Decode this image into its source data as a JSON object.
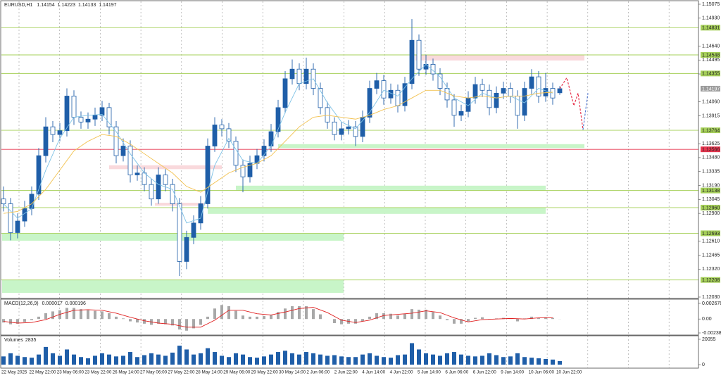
{
  "chart_data": [
    {
      "type": "candlestick",
      "symbol": "EURUSD,H1",
      "color": "#1f5ea8",
      "open": [
        1.1305,
        1.13,
        1.127,
        1.1282,
        1.1295,
        1.131,
        1.135,
        1.138,
        1.1372,
        1.1376,
        1.1412,
        1.139,
        1.1385,
        1.1388,
        1.1392,
        1.14,
        1.138,
        1.135,
        1.136,
        1.133,
        1.1332,
        1.132,
        1.1305,
        1.133,
        1.132,
        1.13,
        1.124,
        1.1265,
        1.128,
        1.13,
        1.136,
        1.1382,
        1.1378,
        1.1365,
        1.134,
        1.1328,
        1.1342,
        1.135,
        1.136,
        1.1375,
        1.14,
        1.143,
        1.144,
        1.1425,
        1.144,
        1.142,
        1.14,
        1.1385,
        1.1372,
        1.1378,
        1.138,
        1.137,
        1.139,
        1.142,
        1.1428,
        1.141,
        1.1418,
        1.1402,
        1.1425,
        1.147,
        1.144,
        1.1445,
        1.1435,
        1.142,
        1.1408,
        1.1392,
        1.1396,
        1.141,
        1.1424,
        1.1418,
        1.14,
        1.1415,
        1.142,
        1.1412,
        1.1392,
        1.142,
        1.1432,
        1.1412,
        1.142,
        1.14154
      ],
      "high": [
        1.1318,
        1.1306,
        1.129,
        1.1303,
        1.1318,
        1.1358,
        1.139,
        1.1386,
        1.1384,
        1.142,
        1.1418,
        1.1396,
        1.1395,
        1.14,
        1.1407,
        1.1405,
        1.1386,
        1.1368,
        1.1366,
        1.134,
        1.1338,
        1.1326,
        1.1338,
        1.1336,
        1.1326,
        1.1306,
        1.1272,
        1.1288,
        1.1308,
        1.1368,
        1.139,
        1.1388,
        1.1384,
        1.137,
        1.1346,
        1.135,
        1.1357,
        1.1367,
        1.1383,
        1.1408,
        1.1438,
        1.145,
        1.1446,
        1.1452,
        1.1446,
        1.1426,
        1.1406,
        1.139,
        1.1385,
        1.1387,
        1.1386,
        1.1397,
        1.1428,
        1.1436,
        1.1434,
        1.1425,
        1.1424,
        1.1432,
        1.1492,
        1.1476,
        1.1455,
        1.1451,
        1.1441,
        1.1426,
        1.1414,
        1.1403,
        1.1417,
        1.1432,
        1.143,
        1.1424,
        1.1422,
        1.1427,
        1.1426,
        1.1418,
        1.1427,
        1.144,
        1.1438,
        1.1436,
        1.1426,
        1.14223
      ],
      "low": [
        1.1292,
        1.1262,
        1.1264,
        1.1276,
        1.1288,
        1.1304,
        1.1343,
        1.1364,
        1.1365,
        1.137,
        1.1382,
        1.1378,
        1.1378,
        1.1381,
        1.1386,
        1.1372,
        1.1342,
        1.1344,
        1.1322,
        1.1324,
        1.1313,
        1.1298,
        1.13,
        1.1313,
        1.1292,
        1.1225,
        1.1232,
        1.1258,
        1.1273,
        1.1295,
        1.1354,
        1.137,
        1.1358,
        1.1333,
        1.1312,
        1.1322,
        1.1336,
        1.1344,
        1.1354,
        1.1369,
        1.1394,
        1.1424,
        1.1418,
        1.1419,
        1.1413,
        1.1393,
        1.1378,
        1.1366,
        1.1366,
        1.1372,
        1.136,
        1.1364,
        1.1384,
        1.1414,
        1.1403,
        1.1404,
        1.1395,
        1.1396,
        1.1419,
        1.1433,
        1.1434,
        1.1428,
        1.1413,
        1.14,
        1.138,
        1.1386,
        1.139,
        1.1404,
        1.1411,
        1.1392,
        1.1394,
        1.1409,
        1.1405,
        1.1378,
        1.1386,
        1.1414,
        1.1405,
        1.1406,
        1.1403,
        1.14133
      ],
      "close": [
        1.13,
        1.127,
        1.1282,
        1.1295,
        1.131,
        1.135,
        1.138,
        1.1372,
        1.1376,
        1.1412,
        1.139,
        1.1385,
        1.1388,
        1.1392,
        1.14,
        1.138,
        1.135,
        1.136,
        1.133,
        1.1332,
        1.132,
        1.1305,
        1.133,
        1.132,
        1.13,
        1.124,
        1.1265,
        1.128,
        1.13,
        1.136,
        1.1382,
        1.1378,
        1.1365,
        1.134,
        1.1328,
        1.1342,
        1.135,
        1.136,
        1.1375,
        1.14,
        1.143,
        1.144,
        1.1425,
        1.144,
        1.142,
        1.14,
        1.1385,
        1.1372,
        1.1378,
        1.138,
        1.137,
        1.139,
        1.142,
        1.1428,
        1.141,
        1.1418,
        1.1402,
        1.1425,
        1.147,
        1.144,
        1.1445,
        1.1435,
        1.142,
        1.1408,
        1.1392,
        1.1396,
        1.141,
        1.1424,
        1.1418,
        1.14,
        1.1415,
        1.142,
        1.1412,
        1.1392,
        1.142,
        1.1432,
        1.1412,
        1.142,
        1.141,
        1.14197
      ],
      "ylim": [
        1.1203,
        1.15075
      ],
      "yticks": [
        1.15075,
        {
          "value": 1.1493,
          "label": "1.14930"
        },
        {
          "value": 1.1464,
          "label": "1.14640"
        },
        1.14495,
        {
          "value": 1.1435,
          "label": "1.14350"
        },
        {
          "value": 1.1406,
          "label": "1.14060"
        },
        1.13915,
        1.13625,
        {
          "value": 1.1348,
          "label": "1.13480"
        },
        1.13335,
        {
          "value": 1.1319,
          "label": "1.13190"
        },
        1.13045,
        {
          "value": 1.129,
          "label": "1.12900"
        },
        {
          "value": 1.1261,
          "label": "1.12610"
        },
        1.12465,
        {
          "value": 1.1232,
          "label": "1.12320"
        },
        {
          "value": 1.1203,
          "label": "1.12030"
        }
      ],
      "series": [
        {
          "color": "#7ec2e6",
          "x": [
            0,
            2,
            4,
            6,
            8,
            10,
            12,
            14,
            16,
            18,
            20,
            22,
            24,
            26,
            28,
            30,
            32,
            34,
            36,
            38,
            40,
            42,
            44,
            46,
            48,
            50,
            52,
            54,
            56,
            58,
            60,
            62,
            64,
            66,
            68,
            70,
            72,
            74,
            76,
            78
          ],
          "values": [
            1.13,
            1.1285,
            1.1295,
            1.1335,
            1.1368,
            1.139,
            1.1392,
            1.1393,
            1.1375,
            1.1352,
            1.1332,
            1.132,
            1.1315,
            1.128,
            1.1285,
            1.134,
            1.1368,
            1.1345,
            1.1342,
            1.136,
            1.1395,
            1.1425,
            1.143,
            1.1405,
            1.1385,
            1.1378,
            1.1395,
            1.1418,
            1.1412,
            1.143,
            1.1445,
            1.1432,
            1.141,
            1.1402,
            1.1415,
            1.141,
            1.1412,
            1.1405,
            1.142,
            1.1415
          ]
        },
        {
          "color": "#f2c14e",
          "x": [
            0,
            2,
            4,
            6,
            8,
            10,
            12,
            14,
            16,
            18,
            20,
            22,
            24,
            26,
            28,
            30,
            32,
            34,
            36,
            38,
            40,
            42,
            44,
            46,
            48,
            50,
            52,
            54,
            56,
            58,
            60,
            62,
            64,
            66,
            68,
            70,
            72,
            74,
            76,
            78
          ],
          "values": [
            1.129,
            1.1292,
            1.13,
            1.1315,
            1.1335,
            1.1355,
            1.1365,
            1.1372,
            1.137,
            1.1362,
            1.1352,
            1.1342,
            1.1332,
            1.1318,
            1.1312,
            1.1322,
            1.1332,
            1.1338,
            1.1342,
            1.135,
            1.1365,
            1.138,
            1.139,
            1.1392,
            1.139,
            1.1388,
            1.1392,
            1.1398,
            1.1402,
            1.141,
            1.1418,
            1.1418,
            1.1412,
            1.141,
            1.1412,
            1.141,
            1.1412,
            1.1412,
            1.1415,
            1.1416
          ]
        },
        {
          "color": "#e8364f",
          "dash": true,
          "x": [
            79,
            80,
            81,
            81.6,
            82.3
          ],
          "values": [
            1.14197,
            1.1431,
            1.1402,
            1.1415,
            1.1377
          ]
        },
        {
          "color": "#5b7fd6",
          "dash": true,
          "x": [
            82.3,
            83
          ],
          "values": [
            1.1377,
            1.1415
          ]
        }
      ],
      "zones": [
        {
          "x": [
            58.5,
            82.5
          ],
          "y": [
            1.1449,
            1.14548
          ],
          "color": "#f9d9dc"
        },
        {
          "x": [
            39,
            82.5
          ],
          "y": [
            1.1358,
            1.1362
          ],
          "color": "#c8f5c8"
        },
        {
          "x": [
            15,
            31
          ],
          "y": [
            1.1336,
            1.134
          ],
          "color": "#f9d9dc"
        },
        {
          "x": [
            33,
            77
          ],
          "y": [
            1.13138,
            1.13188
          ],
          "color": "#c8f5c8"
        },
        {
          "x": [
            21.5,
            28.5
          ],
          "y": [
            1.1298,
            1.1301
          ],
          "color": "#f9d9dc"
        },
        {
          "x": [
            29,
            77
          ],
          "y": [
            1.12895,
            1.1296
          ],
          "color": "#c8f5c8"
        },
        {
          "x": [
            -0.2,
            48.3
          ],
          "y": [
            1.12616,
            1.12689
          ],
          "color": "#c8f5c8"
        },
        {
          "x": [
            -0.2,
            48.3
          ],
          "y": [
            1.12074,
            1.12206
          ],
          "color": "#c8f5c8"
        }
      ],
      "levels": [
        {
          "value": 1.14831,
          "color": "#a6d05a"
        },
        {
          "value": 1.14548,
          "color": "#a6d05a"
        },
        {
          "value": 1.14355,
          "color": "#a6d05a"
        },
        {
          "value": 1.13764,
          "color": "#a6d05a"
        },
        {
          "value": 1.13566,
          "color": "#e8364f"
        },
        {
          "value": 1.13138,
          "color": "#a6d05a"
        },
        {
          "value": 1.1296,
          "label": "1.12960",
          "color": "#a6d05a"
        },
        {
          "value": 1.12693,
          "color": "#a6d05a"
        },
        {
          "value": 1.12208,
          "color": "#a6d05a"
        }
      ],
      "current_price": {
        "value": 1.14197,
        "color": "#9a9a9a"
      },
      "categories": [
        "22 May 2025",
        "22 May 22:00",
        "23 May 06:00",
        "23 May 22:00",
        "26 May 14:00",
        "27 May 06:00",
        "27 May 22:00",
        "28 May 14:00",
        "29 May 06:00",
        "29 May 22:00",
        "30 May 14:00",
        "2 Jun 06:00",
        "2 Jun 22:00",
        "4 Jun 14:00",
        "4 Jun 22:00",
        "5 Jun 14:00",
        "6 Jun 06:00",
        "6 Jun 22:00",
        "9 Jun 14:00",
        "10 Jun 06:00",
        "10 Jun 22:00"
      ]
    },
    {
      "type": "macd",
      "name": "MACD(12,26,9)",
      "color": "#a8a8a8",
      "values": [
        -0.0006,
        -0.0009,
        -0.0008,
        -0.0005,
        -0.0002,
        0.0004,
        0.001,
        0.0013,
        0.0015,
        0.0019,
        0.0019,
        0.0017,
        0.0015,
        0.0014,
        0.0013,
        0.001,
        0.0004,
        0.0001,
        -0.0004,
        -0.0006,
        -0.0008,
        -0.001,
        -0.0008,
        -0.0009,
        -0.0011,
        -0.0018,
        -0.002,
        -0.0016,
        -0.001,
        0.0004,
        0.0018,
        0.0024,
        0.0022,
        0.0014,
        0.0006,
        0.0004,
        0.0004,
        0.0005,
        0.0007,
        0.0012,
        0.0018,
        0.0022,
        0.0022,
        0.0022,
        0.0017,
        0.0008,
        0,
        -0.0007,
        -0.0009,
        -0.0008,
        -0.0008,
        -0.0004,
        0.0004,
        0.001,
        0.001,
        0.0009,
        0.0006,
        0.0009,
        0.0017,
        0.0016,
        0.0016,
        0.0012,
        0.0006,
        -0.0002,
        -0.0008,
        -0.0008,
        -0.0004,
        0.0002,
        0.0003,
        -0.0001,
        0.0001,
        0.0002,
        0.0001,
        -0.0004,
        0.0001,
        0.0004,
        0.0002,
        0.0003,
        0.0002,
        1.7e-05
      ],
      "signal": {
        "color": "#e02020",
        "x": [
          0,
          2,
          4,
          6,
          8,
          10,
          12,
          14,
          16,
          18,
          20,
          22,
          24,
          26,
          28,
          30,
          32,
          34,
          36,
          38,
          40,
          42,
          44,
          46,
          48,
          50,
          52,
          54,
          56,
          58,
          60,
          62,
          64,
          66,
          68,
          70,
          72,
          74,
          76,
          78
        ],
        "values": [
          -0.0004,
          -0.0007,
          -0.0006,
          -0.0001,
          0.0008,
          0.0015,
          0.0016,
          0.0015,
          0.001,
          0.0003,
          -0.0003,
          -0.0007,
          -0.0009,
          -0.0014,
          -0.0014,
          -0.0002,
          0.0015,
          0.0015,
          0.0009,
          0.0007,
          0.0012,
          0.0018,
          0.002,
          0.0011,
          -0.0002,
          -0.0006,
          -0.0002,
          0.0006,
          0.0008,
          0.001,
          0.0014,
          0.0011,
          0.0002,
          -0.0005,
          -0.0001,
          0,
          0.0001,
          0,
          0.0002,
          0.000196
        ]
      },
      "ylim": [
        -0.002389,
        0.002678
      ],
      "yticks": [
        0.002678,
        {
          "value": 0,
          "label": "0.00"
        },
        -0.002389
      ]
    },
    {
      "type": "bar",
      "name": "Volumes",
      "color": "#1f5ea8",
      "values": [
        6500,
        9000,
        7000,
        6000,
        5500,
        8000,
        14000,
        9000,
        7000,
        12000,
        8000,
        6000,
        5000,
        7000,
        9000,
        8000,
        6500,
        7000,
        10000,
        6000,
        7500,
        9000,
        8000,
        7000,
        9500,
        15000,
        12000,
        8000,
        9000,
        13000,
        10000,
        7000,
        6000,
        9000,
        8000,
        6000,
        5500,
        6500,
        8000,
        10000,
        11000,
        9000,
        8000,
        10000,
        9000,
        8000,
        7000,
        7500,
        6500,
        6000,
        6000,
        8000,
        9000,
        7000,
        6000,
        5500,
        7500,
        8000,
        17000,
        12000,
        9000,
        8000,
        7000,
        9000,
        10000,
        8000,
        7000,
        6500,
        7000,
        9000,
        7500,
        6000,
        6500,
        9000,
        6000,
        5500,
        5000,
        4500,
        4000,
        2835
      ],
      "ylim": [
        0,
        20055
      ],
      "yticks": [
        20055,
        0
      ]
    }
  ]
}
